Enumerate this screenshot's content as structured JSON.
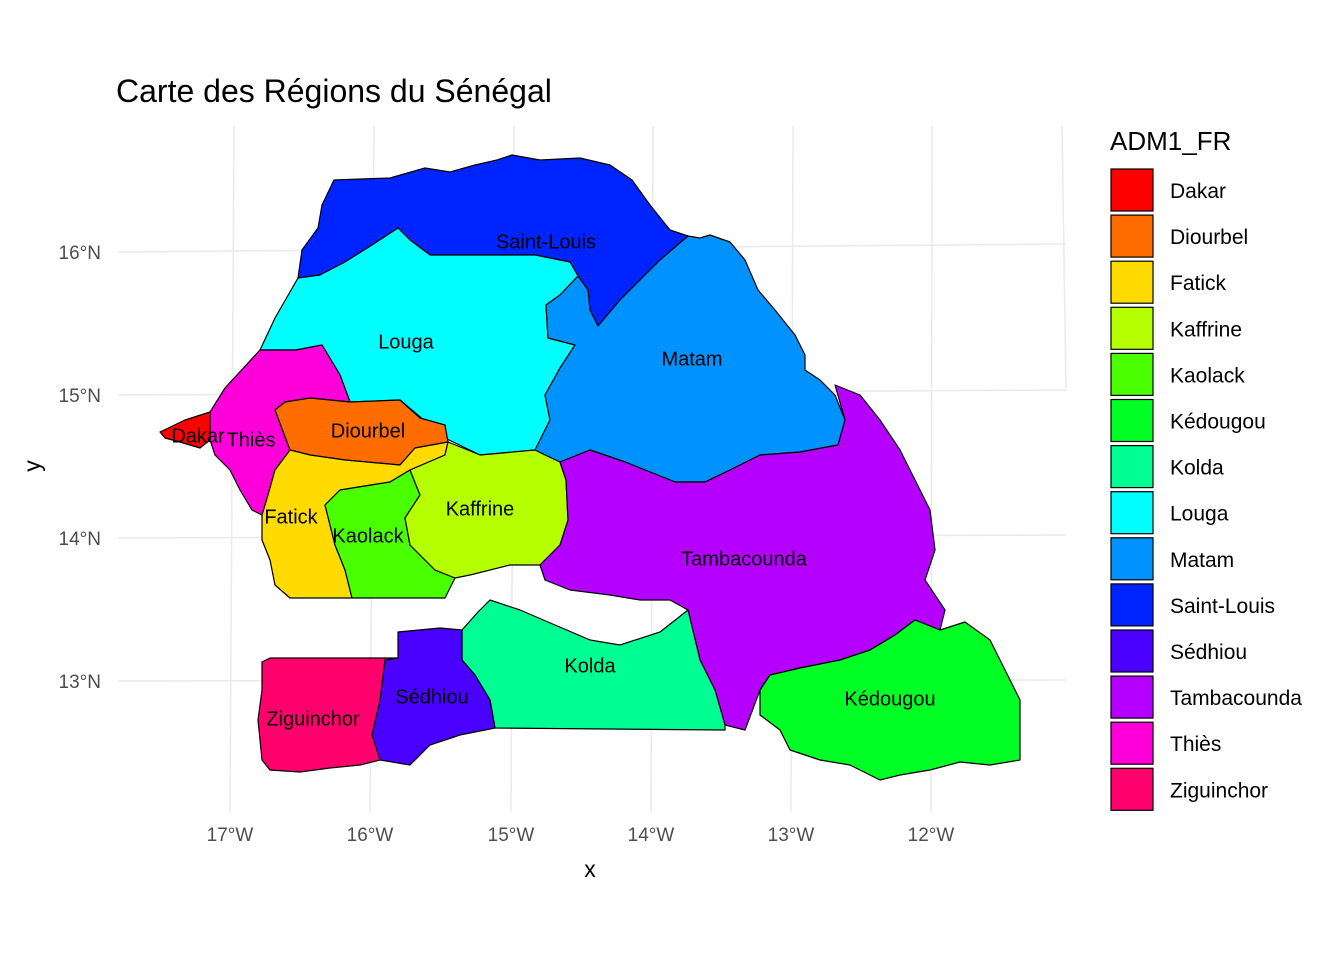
{
  "chart_data": {
    "type": "map",
    "title": "Carte des Régions du Sénégal",
    "xlabel": "x",
    "ylabel": "y",
    "x_ticks": [
      "17°W",
      "16°W",
      "15°W",
      "14°W",
      "13°W",
      "12°W"
    ],
    "y_ticks": [
      "16°N",
      "15°N",
      "14°N",
      "13°N"
    ],
    "legend_title": "ADM1_FR",
    "legend_position": "right",
    "grid": true,
    "regions": [
      {
        "name": "Dakar",
        "color": "#FF0000"
      },
      {
        "name": "Diourbel",
        "color": "#FF6D00"
      },
      {
        "name": "Fatick",
        "color": "#FFDB00"
      },
      {
        "name": "Kaffrine",
        "color": "#B6FF00"
      },
      {
        "name": "Kaolack",
        "color": "#49FF00"
      },
      {
        "name": "Kédougou",
        "color": "#00FF24"
      },
      {
        "name": "Kolda",
        "color": "#00FF92"
      },
      {
        "name": "Louga",
        "color": "#00FFFF"
      },
      {
        "name": "Matam",
        "color": "#0092FF"
      },
      {
        "name": "Saint-Louis",
        "color": "#0024FF"
      },
      {
        "name": "Sédhiou",
        "color": "#4900FF"
      },
      {
        "name": "Tambacounda",
        "color": "#B600FF"
      },
      {
        "name": "Thiès",
        "color": "#FF00DB"
      },
      {
        "name": "Ziguinchor",
        "color": "#FF006D"
      }
    ]
  }
}
